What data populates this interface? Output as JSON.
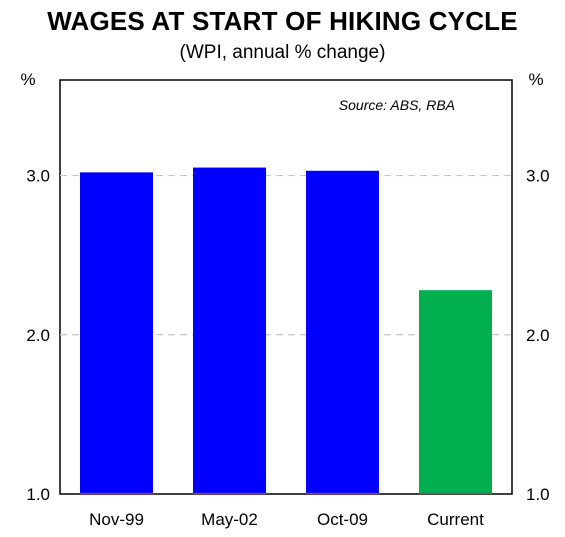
{
  "chart_data": {
    "type": "bar",
    "title": "WAGES AT START OF HIKING CYCLE",
    "subtitle": "(WPI, annual % change)",
    "ylabel_left": "%",
    "ylabel_right": "%",
    "source": "Source: ABS, RBA",
    "categories": [
      "Nov-99",
      "May-02",
      "Oct-09",
      "Current"
    ],
    "values": [
      3.02,
      3.05,
      3.03,
      2.28
    ],
    "colors": [
      "#0000ff",
      "#0000ff",
      "#0000ff",
      "#00b050"
    ],
    "ylim": [
      1.0,
      3.6
    ],
    "yticks": [
      "1.0",
      "2.0",
      "3.0"
    ],
    "ytick_values": [
      1.0,
      2.0,
      3.0
    ],
    "grid": true
  }
}
